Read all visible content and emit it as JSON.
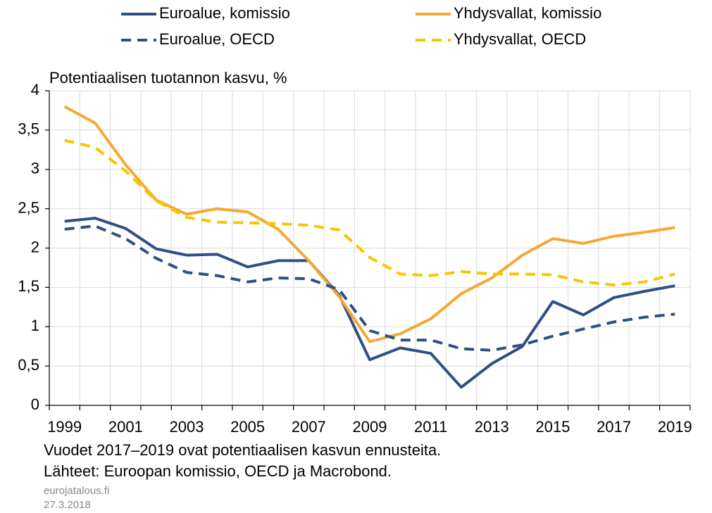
{
  "chart_data": {
    "type": "line",
    "y_label": "Potentiaalisen tuotannon kasvu, %",
    "categories": [
      "1999",
      null,
      "2001",
      null,
      "2003",
      null,
      "2005",
      null,
      "2007",
      null,
      "2009",
      null,
      "2011",
      null,
      "2013",
      null,
      "2015",
      null,
      "2017",
      null,
      "2019"
    ],
    "series": [
      {
        "name": "Euroalue, komissio",
        "color": "#2f4f86",
        "dash": false,
        "values": [
          2.34,
          2.38,
          2.25,
          1.99,
          1.91,
          1.92,
          1.76,
          1.84,
          1.84,
          1.4,
          0.58,
          0.73,
          0.66,
          0.23,
          0.53,
          0.75,
          1.32,
          1.15,
          1.37,
          1.45,
          1.52
        ]
      },
      {
        "name": "Yhdysvallat, komissio",
        "color": "#f5a833",
        "dash": false,
        "values": [
          3.8,
          3.59,
          3.06,
          2.61,
          2.43,
          2.5,
          2.46,
          2.24,
          1.84,
          1.38,
          0.81,
          0.91,
          1.1,
          1.42,
          1.62,
          1.91,
          2.12,
          2.06,
          2.15,
          2.2,
          2.26
        ]
      },
      {
        "name": "Euroalue, OECD",
        "color": "#2f4f86",
        "dash": true,
        "values": [
          2.24,
          2.28,
          2.12,
          1.87,
          1.69,
          1.65,
          1.57,
          1.62,
          1.61,
          1.47,
          0.95,
          0.83,
          0.83,
          0.72,
          0.7,
          0.77,
          0.88,
          0.97,
          1.06,
          1.12,
          1.16
        ]
      },
      {
        "name": "Yhdysvallat, OECD",
        "color": "#f7c600",
        "dash": true,
        "values": [
          3.37,
          3.28,
          2.98,
          2.6,
          2.39,
          2.33,
          2.32,
          2.31,
          2.29,
          2.23,
          1.88,
          1.67,
          1.65,
          1.7,
          1.67,
          1.67,
          1.66,
          1.57,
          1.53,
          1.57,
          1.67
        ]
      }
    ],
    "ylim": [
      0,
      4
    ],
    "yticks": [
      0,
      {
        "value": 0.5,
        "label": "0,5"
      },
      1,
      {
        "value": 1.5,
        "label": "1,5"
      },
      2,
      {
        "value": 2.5,
        "label": "2,5"
      },
      3,
      {
        "value": 3.5,
        "label": "3,5"
      },
      4
    ],
    "grid": true,
    "notes": [
      "Vuodet 2017–2019 ovat potentiaalisen kasvun ennusteita.",
      "Lähteet: Euroopan komissio, OECD ja Macrobond."
    ],
    "source": "eurojatalous.fi",
    "date": "27.3.2018"
  }
}
